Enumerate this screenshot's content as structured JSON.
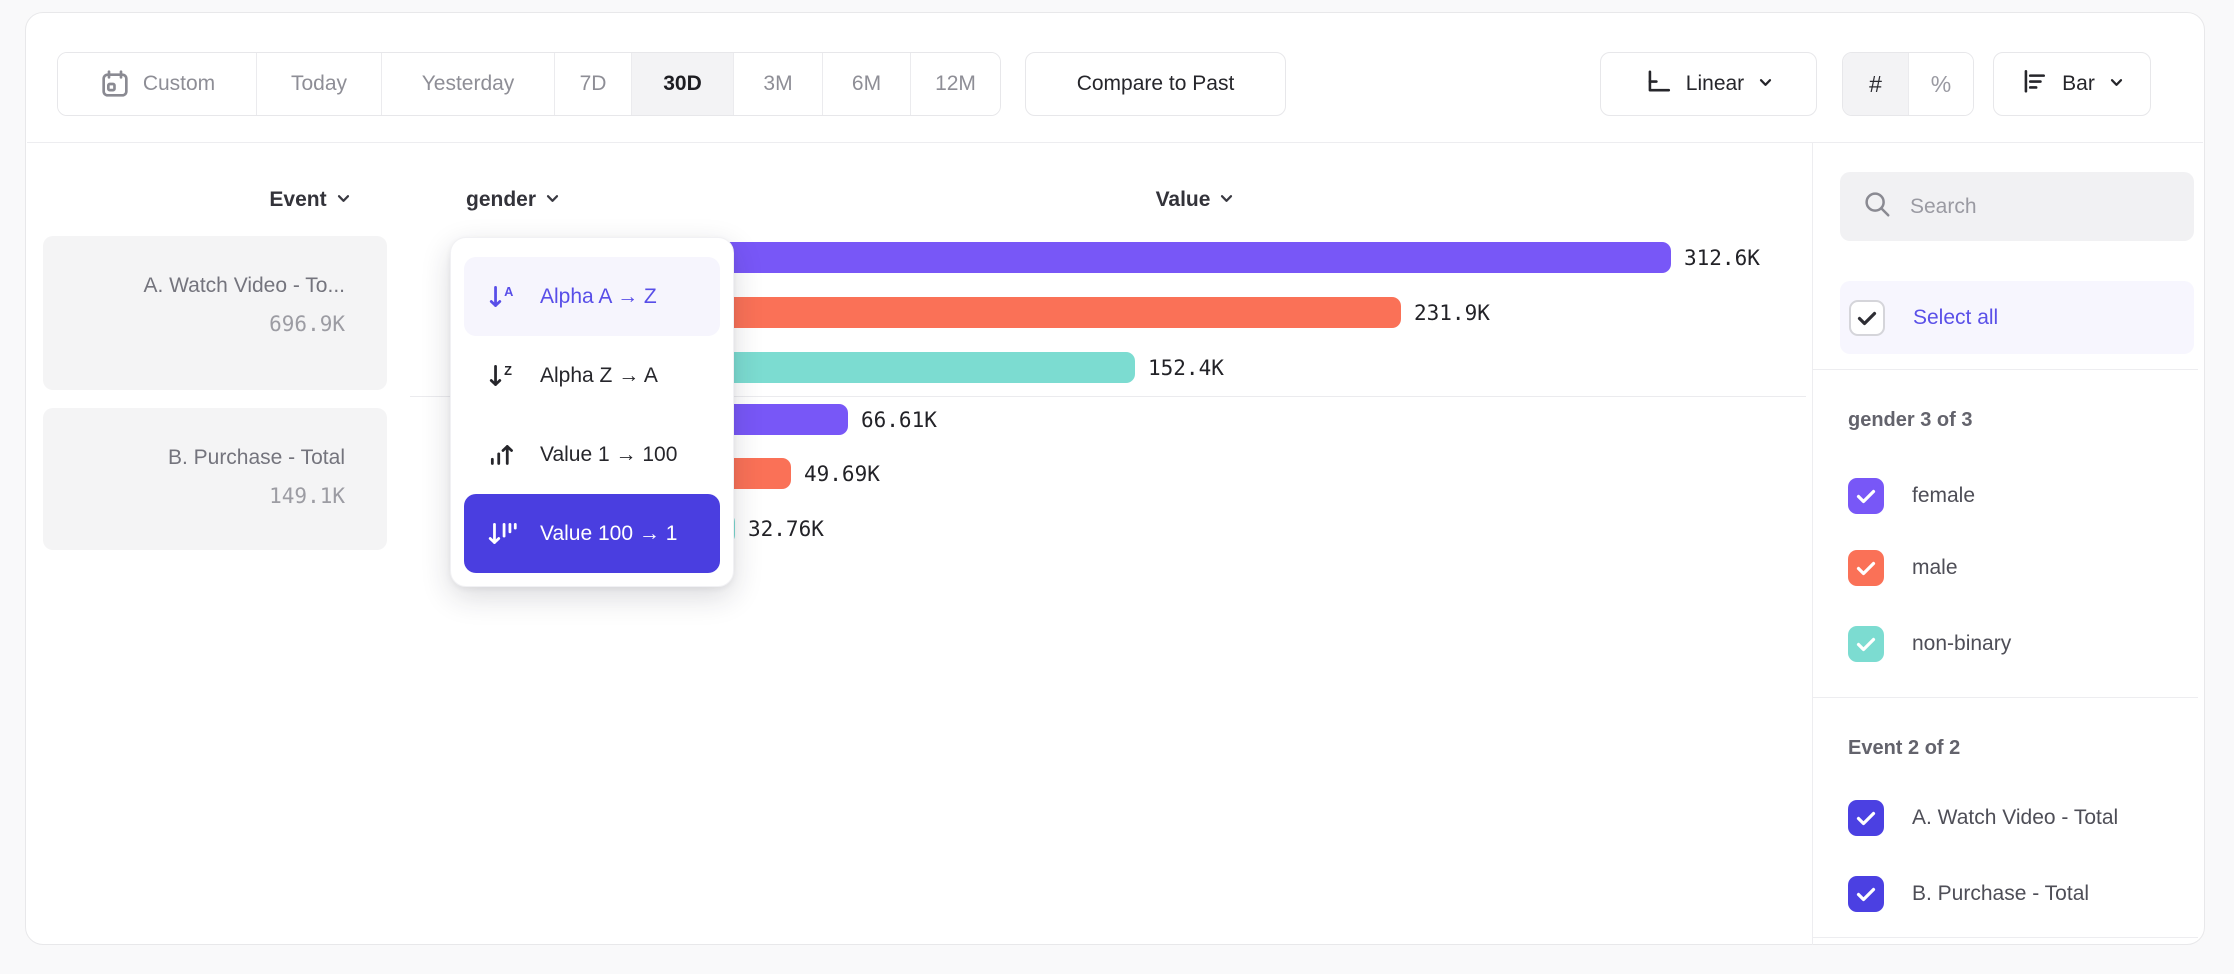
{
  "toolbar": {
    "date_ranges": [
      "Custom",
      "Today",
      "Yesterday",
      "7D",
      "30D",
      "3M",
      "6M",
      "12M"
    ],
    "active_range": "30D",
    "compare_label": "Compare to Past",
    "scale_label": "Linear",
    "normalize_number": "#",
    "normalize_percent": "%",
    "chart_type_label": "Bar"
  },
  "columns": {
    "event": "Event",
    "breakdown": "gender",
    "value": "Value"
  },
  "event_cards": [
    {
      "title": "A. Watch Video - To...",
      "value": "696.9K"
    },
    {
      "title": "B. Purchase - Total",
      "value": "149.1K"
    }
  ],
  "sort_menu": {
    "items": [
      {
        "label": "Alpha A → Z",
        "icon": "sort-alpha-asc",
        "state": "highlighted"
      },
      {
        "label": "Alpha Z → A",
        "icon": "sort-alpha-desc",
        "state": "normal"
      },
      {
        "label": "Value 1 → 100",
        "icon": "sort-value-asc",
        "state": "normal"
      },
      {
        "label": "Value 100 → 1",
        "icon": "sort-value-desc",
        "state": "selected"
      }
    ]
  },
  "chart_data": {
    "type": "bar",
    "orientation": "horizontal",
    "value_axis_label": "Value",
    "breakdown": "gender",
    "max_value": 312600,
    "groups": [
      {
        "event": "A. Watch Video - Total",
        "bars": [
          {
            "category": "female",
            "value": 312600,
            "label": "312.6K",
            "color": "#7857f7"
          },
          {
            "category": "male",
            "value": 231900,
            "label": "231.9K",
            "color": "#fa7157"
          },
          {
            "category": "non-binary",
            "value": 152400,
            "label": "152.4K",
            "color": "#7cdcd1"
          }
        ]
      },
      {
        "event": "B. Purchase - Total",
        "bars": [
          {
            "category": "female",
            "value": 66610,
            "label": "66.61K",
            "color": "#7857f7"
          },
          {
            "category": "male",
            "value": 49690,
            "label": "49.69K",
            "color": "#fa7157"
          },
          {
            "category": "non-binary",
            "value": 32760,
            "label": "32.76K",
            "color": "#7cdcd1"
          }
        ]
      }
    ]
  },
  "sidebar": {
    "search_placeholder": "Search",
    "select_all_label": "Select all",
    "sections": [
      {
        "title": "gender 3 of 3",
        "items": [
          {
            "label": "female",
            "color": "#7857f7",
            "checked": true
          },
          {
            "label": "male",
            "color": "#fa7157",
            "checked": true
          },
          {
            "label": "non-binary",
            "color": "#7cdcd1",
            "checked": true
          }
        ]
      },
      {
        "title": "Event 2 of 2",
        "items": [
          {
            "label": "A. Watch Video - Total",
            "color": "#4b40e2",
            "checked": true
          },
          {
            "label": "B. Purchase - Total",
            "color": "#4b40e2",
            "checked": true
          }
        ]
      }
    ]
  },
  "colors": {
    "purple": "#7857f7",
    "orange": "#fa7157",
    "teal": "#7cdcd1",
    "indigo": "#4a3ee0",
    "link": "#5a50e8"
  }
}
